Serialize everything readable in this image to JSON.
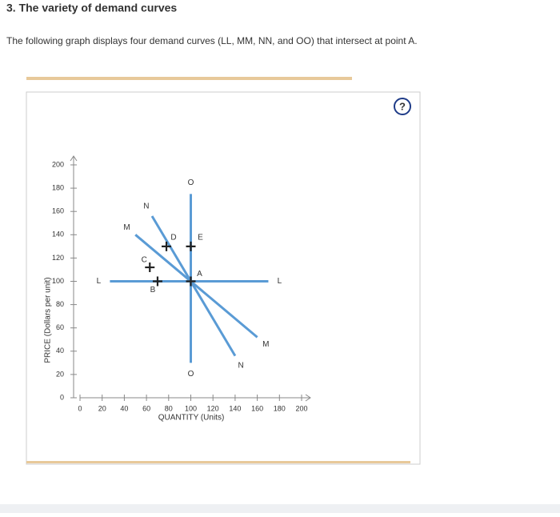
{
  "header": {
    "title": "3. The variety of demand curves",
    "description": "The following graph displays four demand curves (LL, MM, NN, and OO) that intersect at point A.",
    "help": "?"
  },
  "chart_data": {
    "type": "line",
    "xlabel": "QUANTITY (Units)",
    "ylabel": "PRICE (Dollars per unit)",
    "xlim": [
      0,
      200
    ],
    "ylim": [
      0,
      200
    ],
    "xticks": [
      0,
      20,
      40,
      60,
      80,
      100,
      120,
      140,
      160,
      180,
      200
    ],
    "yticks": [
      0,
      20,
      40,
      60,
      80,
      100,
      120,
      140,
      160,
      180,
      200
    ],
    "grid": false,
    "series": [
      {
        "name": "L",
        "color": "#5a9bd5",
        "x": [
          27,
          170
        ],
        "values": [
          100,
          100
        ]
      },
      {
        "name": "M",
        "color": "#5a9bd5",
        "x": [
          50,
          160
        ],
        "values": [
          140,
          52
        ]
      },
      {
        "name": "N",
        "color": "#5a9bd5",
        "x": [
          65,
          140
        ],
        "values": [
          156,
          36
        ]
      },
      {
        "name": "O",
        "color": "#5a9bd5",
        "x": [
          100,
          100
        ],
        "values": [
          175,
          30
        ]
      }
    ],
    "points": [
      {
        "label": "A",
        "x": 100,
        "y": 100
      },
      {
        "label": "B",
        "x": 70,
        "y": 100
      },
      {
        "label": "C",
        "x": 63,
        "y": 112
      },
      {
        "label": "D",
        "x": 78,
        "y": 130
      },
      {
        "label": "E",
        "x": 100,
        "y": 130
      }
    ]
  }
}
